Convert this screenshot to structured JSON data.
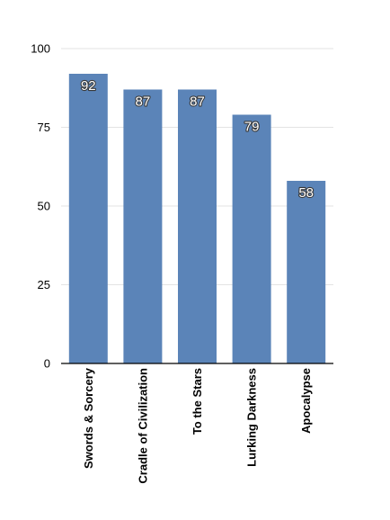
{
  "chart_data": {
    "type": "bar",
    "title": "",
    "xlabel": "",
    "ylabel": "",
    "categories": [
      "Swords & Sorcery",
      "Cradle of Civilization",
      "To the Stars",
      "Lurking Darkness",
      "Apocalypse"
    ],
    "values": [
      92,
      87,
      87,
      79,
      58
    ],
    "ylim": [
      0,
      100
    ],
    "yticks": [
      0,
      25,
      50,
      75,
      100
    ],
    "grid": true,
    "data_labels": true,
    "legend": "none",
    "bar_color": "#5b84b8",
    "grid_color": "#e3e3e3",
    "axis_color": "#000000"
  }
}
